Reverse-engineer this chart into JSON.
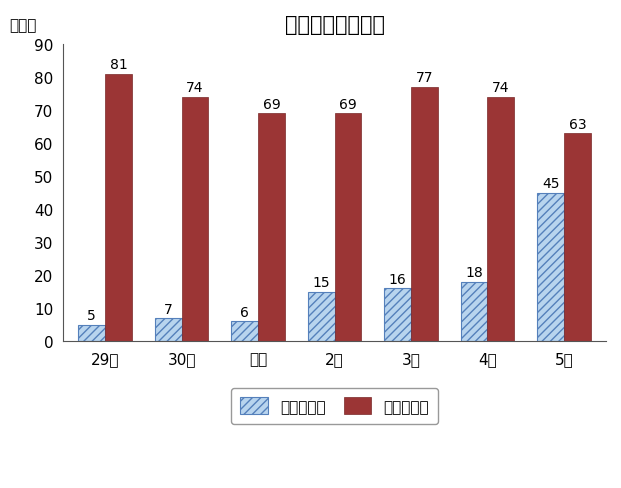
{
  "title": "育児休業取得者数",
  "ylabel": "（人）",
  "categories": [
    "29年",
    "30年",
    "元年",
    "2年",
    "3年",
    "4年",
    "5年"
  ],
  "male_values": [
    5,
    7,
    6,
    15,
    16,
    18,
    45
  ],
  "female_values": [
    81,
    74,
    69,
    69,
    77,
    74,
    63
  ],
  "male_color": "#b8d4ee",
  "female_color": "#9b3535",
  "male_hatch": "////",
  "male_label": "男性取得者",
  "female_label": "女性取得者",
  "ylim": [
    0,
    90
  ],
  "yticks": [
    0,
    10,
    20,
    30,
    40,
    50,
    60,
    70,
    80,
    90
  ],
  "bar_width": 0.35,
  "title_fontsize": 15,
  "tick_fontsize": 11,
  "label_fontsize": 11,
  "annotation_fontsize": 10,
  "background_color": "#ffffff"
}
